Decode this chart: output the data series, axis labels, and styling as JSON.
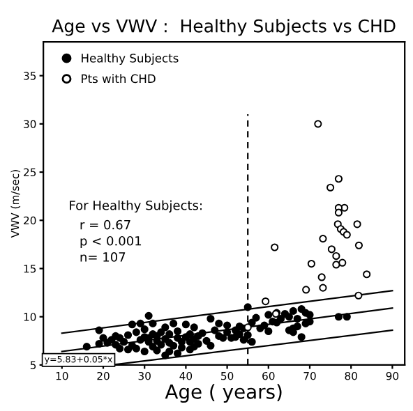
{
  "chart_data": {
    "type": "scatter",
    "title": "Age vs VWV :  Healthy Subjects vs CHD",
    "xlabel": "Age ( years)",
    "ylabel": "VWV (m/sec)",
    "xlim": [
      5.5,
      93
    ],
    "ylim": [
      5,
      38.5
    ],
    "xticks": [
      10,
      20,
      30,
      40,
      50,
      60,
      70,
      80,
      90
    ],
    "yticks": [
      5,
      10,
      15,
      20,
      25,
      30,
      35
    ],
    "grid": false,
    "legend": "top left",
    "series": [
      {
        "name": "Healthy Subjects",
        "color": "#000000",
        "marker": "circle",
        "x": [
          16,
          19,
          19,
          20,
          21,
          22,
          23,
          23,
          24,
          24,
          25,
          26,
          26,
          27,
          27,
          28,
          28,
          29,
          29,
          30,
          30,
          30,
          31,
          31,
          31,
          32,
          32,
          32,
          33,
          33,
          33,
          34,
          34,
          35,
          35,
          35,
          36,
          36,
          36,
          37,
          37,
          38,
          38,
          38,
          39,
          39,
          40,
          40,
          41,
          41,
          41,
          42,
          42,
          42,
          43,
          43,
          44,
          45,
          46,
          46,
          47,
          48,
          48,
          49,
          50,
          50,
          51,
          52,
          52,
          53,
          53,
          54,
          54,
          55,
          55,
          56,
          56,
          57,
          59,
          60,
          60,
          61,
          62,
          63,
          64,
          65,
          65,
          66,
          66,
          66,
          67,
          67,
          68,
          68,
          69,
          69,
          70,
          70,
          77,
          79,
          62,
          58
        ],
        "values": [
          6.9,
          8.6,
          7.2,
          7.8,
          7.3,
          7.6,
          7.1,
          8.0,
          6.7,
          7.8,
          7.4,
          6.6,
          8.1,
          7.0,
          9.2,
          8.4,
          6.7,
          9.3,
          7.6,
          7.9,
          6.4,
          8.7,
          10.1,
          7.4,
          7.8,
          6.9,
          8.2,
          9.3,
          7.5,
          6.5,
          8.0,
          7.1,
          8.4,
          6.0,
          7.7,
          8.9,
          6.4,
          7.3,
          8.2,
          9.3,
          7.0,
          6.2,
          7.8,
          8.5,
          7.4,
          6.8,
          9.2,
          7.9,
          6.6,
          7.4,
          8.2,
          6.9,
          7.7,
          8.9,
          7.2,
          8.0,
          8.3,
          7.5,
          9.8,
          7.0,
          8.6,
          8.0,
          9.3,
          7.8,
          8.4,
          9.1,
          7.8,
          8.6,
          7.9,
          8.2,
          9.0,
          7.6,
          8.8,
          11.0,
          8.1,
          9.4,
          7.4,
          9.9,
          9.1,
          10.2,
          8.5,
          9.5,
          10.4,
          9.8,
          10.3,
          8.6,
          10.0,
          8.8,
          8.4,
          10.6,
          9.0,
          9.8,
          10.8,
          7.9,
          10.4,
          9.3,
          10.2,
          9.5,
          10.0,
          10.0,
          9.4,
          8.8
        ]
      },
      {
        "name": "Pts with CHD",
        "color": "#000000",
        "marker": "circle",
        "x": [
          72,
          77,
          75,
          78.4,
          77.0,
          77,
          76.8,
          81.5,
          77.5,
          78.2,
          79,
          73.2,
          81.9,
          61.5,
          75.3,
          76.4,
          77.9,
          76.4,
          70.4,
          83.8,
          72.9,
          73.2,
          69.1,
          81.8,
          59.3,
          61.8,
          55
        ],
        "values": [
          30,
          24.3,
          23.4,
          21.3,
          21.3,
          20.8,
          19.6,
          19.6,
          19.1,
          18.8,
          18.5,
          18.1,
          17.4,
          17.2,
          17.0,
          16.3,
          15.6,
          15.4,
          15.5,
          14.4,
          14.1,
          13.0,
          12.8,
          12.2,
          11.6,
          10.3,
          8.9
        ]
      },
      {
        "type": "line",
        "color": "#000000",
        "line_style": "solid",
        "x": [
          10,
          90
        ],
        "values": [
          8.3,
          12.7
        ]
      },
      {
        "type": "line",
        "color": "#000000",
        "line_style": "solid",
        "x": [
          10,
          90
        ],
        "values": [
          6.4,
          10.9
        ]
      },
      {
        "type": "line",
        "color": "#000000",
        "line_style": "solid",
        "x": [
          22,
          90
        ],
        "values": [
          5.0,
          8.6
        ]
      },
      {
        "type": "line",
        "color": "#000000",
        "line_style": "dashed",
        "x": [
          55,
          55
        ],
        "values": [
          5,
          31
        ]
      }
    ],
    "annotations": [
      "For Healthy Subjects:",
      "r = 0.67",
      "p < 0.001",
      "n= 107",
      "y=5.83+0.05*x"
    ]
  }
}
